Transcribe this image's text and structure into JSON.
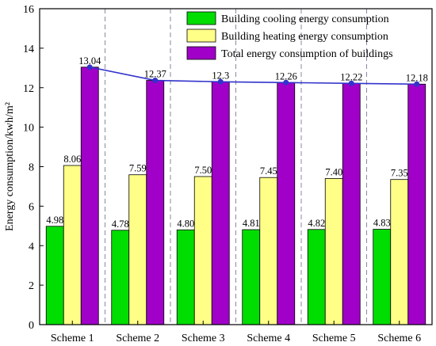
{
  "chart_data": {
    "type": "bar",
    "categories": [
      "Scheme 1",
      "Scheme 2",
      "Scheme 3",
      "Scheme 4",
      "Scheme 5",
      "Scheme 6"
    ],
    "series": [
      {
        "name": "Building cooling energy consumption",
        "values": [
          4.98,
          4.78,
          4.8,
          4.81,
          4.82,
          4.83
        ],
        "labels": [
          "4.98",
          "4.78",
          "4.80",
          "4.81",
          "4.82",
          "4.83"
        ],
        "color": "#00dd00"
      },
      {
        "name": "Building heating energy consumption",
        "values": [
          8.06,
          7.59,
          7.5,
          7.45,
          7.4,
          7.35
        ],
        "labels": [
          "8.06",
          "7.59",
          "7.50",
          "7.45",
          "7.40",
          "7.35"
        ],
        "color": "#ffff88"
      },
      {
        "name": "Total energy consumption of buildings",
        "values": [
          13.04,
          12.37,
          12.3,
          12.26,
          12.22,
          12.18
        ],
        "labels": [
          "13.04",
          "12.37",
          "12.3",
          "12.26",
          "12.22",
          "12.18"
        ],
        "color": "#a000c8"
      }
    ],
    "trend_line": {
      "series": "Total energy consumption of buildings",
      "color": "#3333cc"
    },
    "title": "",
    "xlabel": "",
    "ylabel": "Energy consumption/kwh/m²",
    "ylim": [
      0,
      16
    ],
    "yticks": [
      "0",
      "2",
      "4",
      "6",
      "8",
      "10",
      "12",
      "14",
      "16"
    ],
    "grid": "dashed vertical separators between categories",
    "legend_position": "top-right"
  }
}
